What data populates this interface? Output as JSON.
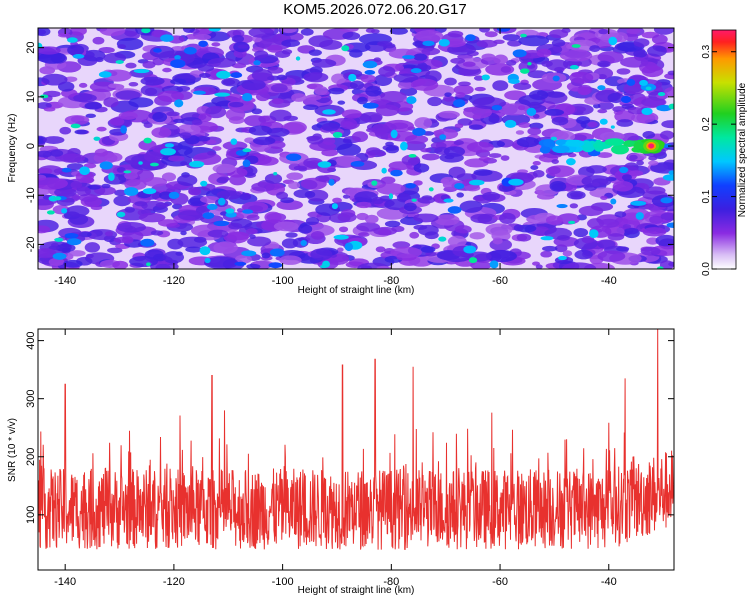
{
  "figure": {
    "title": "KOM5.2026.072.06.20.G17"
  },
  "chart_data": [
    {
      "type": "heatmap",
      "title": "",
      "xlabel": "Height of straight line (km)",
      "ylabel": "Frequency (Hz)",
      "xlim": [
        -145,
        -28
      ],
      "ylim": [
        -25,
        24
      ],
      "x_ticks": [
        -140,
        -120,
        -100,
        -80,
        -60,
        -40
      ],
      "y_ticks": [
        -20,
        -10,
        0,
        10,
        20
      ],
      "colorbar": {
        "label": "Normalized spectral amplitude",
        "range": [
          0.0,
          0.33
        ],
        "ticks": [
          0.0,
          0.1,
          0.2,
          0.3
        ]
      },
      "features": [
        {
          "description": "strong signal streak near 0 Hz",
          "x_range": [
            -52,
            -30
          ],
          "y": 0,
          "peak_value": 0.33
        }
      ]
    },
    {
      "type": "line",
      "title": "",
      "xlabel": "Height of straight line (km)",
      "ylabel": "SNR (10 * v/v)",
      "xlim": [
        -145,
        -28
      ],
      "ylim": [
        5,
        420
      ],
      "x_ticks": [
        -140,
        -120,
        -100,
        -80,
        -60,
        -40
      ],
      "y_ticks": [
        100,
        200,
        300,
        400
      ],
      "series": [
        {
          "name": "SNR",
          "color": "#e8312e",
          "baseline": 110,
          "peaks": [
            {
              "x": -140,
              "y": 325
            },
            {
              "x": -113,
              "y": 340
            },
            {
              "x": -83,
              "y": 368
            },
            {
              "x": -89,
              "y": 358
            },
            {
              "x": -76,
              "y": 355
            },
            {
              "x": -37,
              "y": 335
            },
            {
              "x": -31,
              "y": 420
            }
          ]
        }
      ]
    }
  ]
}
